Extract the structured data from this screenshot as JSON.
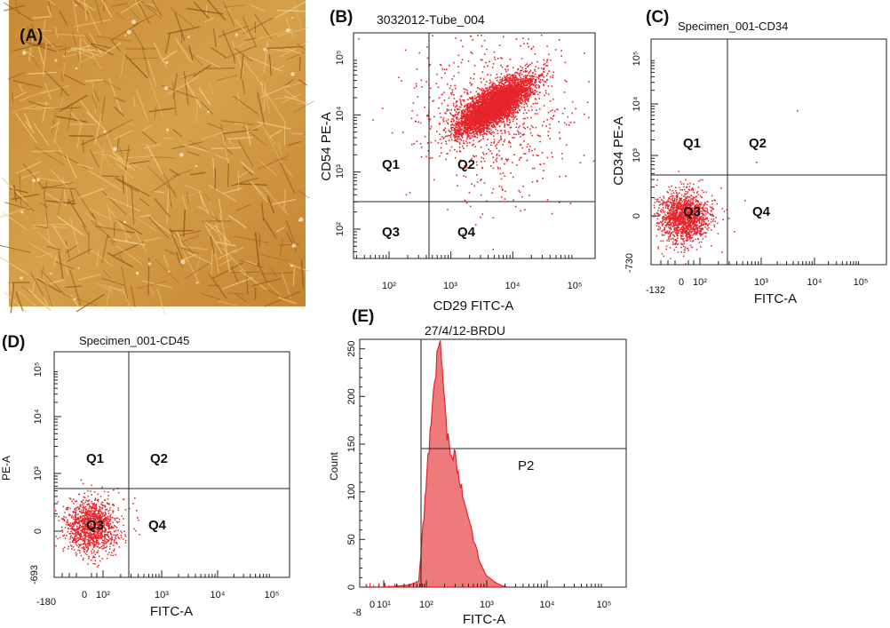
{
  "chart_data": [
    {
      "panel": "(A)",
      "type": "image",
      "content": "phase-contrast micrograph of spindle-shaped adherent cells"
    },
    {
      "panel": "(B)",
      "type": "scatter",
      "title": "3032012-Tube_004",
      "xlabel": "CD29 FITC-A",
      "ylabel": "CD54 PE-A",
      "x_scale": "log",
      "y_scale": "log",
      "xlim": [
        10,
        160000
      ],
      "ylim": [
        30,
        160000
      ],
      "x_ticks": [
        "10²",
        "10³",
        "10⁴",
        "10⁵"
      ],
      "y_ticks": [
        "10²",
        "10³",
        "10⁴",
        "10⁵"
      ],
      "gates": {
        "x": 420,
        "y": 340
      },
      "quadrants": [
        "Q1",
        "Q2",
        "Q3",
        "Q4"
      ],
      "population": {
        "center": [
          5000,
          15000
        ],
        "spread_decades": [
          0.35,
          0.35
        ],
        "color": "#e8232a"
      }
    },
    {
      "panel": "(C)",
      "type": "scatter",
      "title": "Specimen_001-CD34",
      "xlabel": "FITC-A",
      "ylabel": "CD34 PE-A",
      "x_scale": "biexponential",
      "y_scale": "biexponential",
      "x_ticks": [
        "-132",
        "0",
        "10²",
        "10³",
        "10⁴",
        "10⁵"
      ],
      "y_ticks": [
        "-730",
        "0",
        "10³",
        "10⁴",
        "10⁵"
      ],
      "gates": {
        "x": 300,
        "y": 700
      },
      "quadrants": [
        "Q1",
        "Q2",
        "Q3",
        "Q4"
      ],
      "population": {
        "center": [
          40,
          0
        ],
        "color": "#e8232a"
      }
    },
    {
      "panel": "(D)",
      "type": "scatter",
      "title": "Specimen_001-CD45",
      "xlabel": "FITC-A",
      "ylabel": "PE-A",
      "x_scale": "biexponential",
      "y_scale": "biexponential",
      "x_ticks": [
        "-180",
        "0",
        "10²",
        "10³",
        "10⁴",
        "10⁵"
      ],
      "y_ticks": [
        "-693",
        "0",
        "10³",
        "10⁴",
        "10⁵"
      ],
      "gates": {
        "x": 300,
        "y": 700
      },
      "quadrants": [
        "Q1",
        "Q2",
        "Q3",
        "Q4"
      ],
      "population": {
        "center": [
          40,
          0
        ],
        "color": "#e8232a"
      }
    },
    {
      "panel": "(E)",
      "type": "area",
      "title": "27/4/12-BRDU",
      "xlabel": "FITC-A",
      "ylabel": "Count",
      "x_scale": "biexponential",
      "x_ticks": [
        "-8",
        "0",
        "10¹",
        "10²",
        "10³",
        "10⁴",
        "10⁵"
      ],
      "y_ticks": [
        0,
        50,
        100,
        150,
        200,
        250
      ],
      "ylim": [
        0,
        260
      ],
      "gate": {
        "name": "P2",
        "x_from": 85,
        "x_to": 160000,
        "y": 140
      },
      "histogram": {
        "x": [
          20,
          50,
          75,
          95,
          120,
          150,
          170,
          190,
          220,
          260,
          300,
          350,
          400,
          500,
          600,
          700,
          850,
          1000,
          1300,
          1700,
          2200
        ],
        "y": [
          0,
          2,
          6,
          90,
          175,
          240,
          258,
          215,
          160,
          140,
          135,
          110,
          95,
          70,
          50,
          35,
          20,
          12,
          6,
          2,
          0
        ],
        "color": "#ee7a7c"
      }
    }
  ]
}
